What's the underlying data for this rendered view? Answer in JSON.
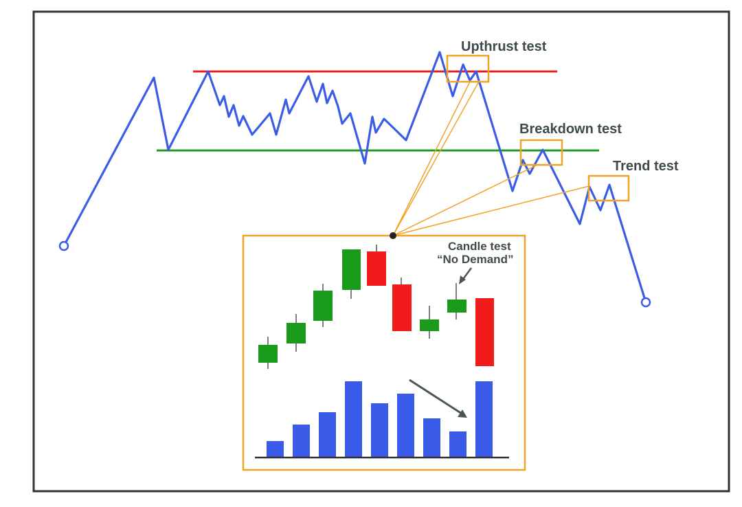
{
  "labels": {
    "upthrust": "Upthrust test",
    "breakdown": "Breakdown test",
    "trend": "Trend test",
    "candle_line1": "Candle test",
    "candle_line2": "“No Demand”"
  },
  "colors": {
    "price_line": "#3b5de5",
    "resistance": "#e31f1f",
    "support": "#1e9c1e",
    "highlight_box": "#f0a322",
    "bull_candle": "#1b9b1b",
    "bear_candle": "#f11b1b",
    "volume_bar": "#3a5be8",
    "frame": "#333333",
    "label_text": "#3f4a4a"
  },
  "diagram": {
    "candles": [
      {
        "direction": "up"
      },
      {
        "direction": "up"
      },
      {
        "direction": "up"
      },
      {
        "direction": "up"
      },
      {
        "direction": "down"
      },
      {
        "direction": "down"
      },
      {
        "direction": "up"
      },
      {
        "direction": "up"
      },
      {
        "direction": "down"
      }
    ]
  }
}
